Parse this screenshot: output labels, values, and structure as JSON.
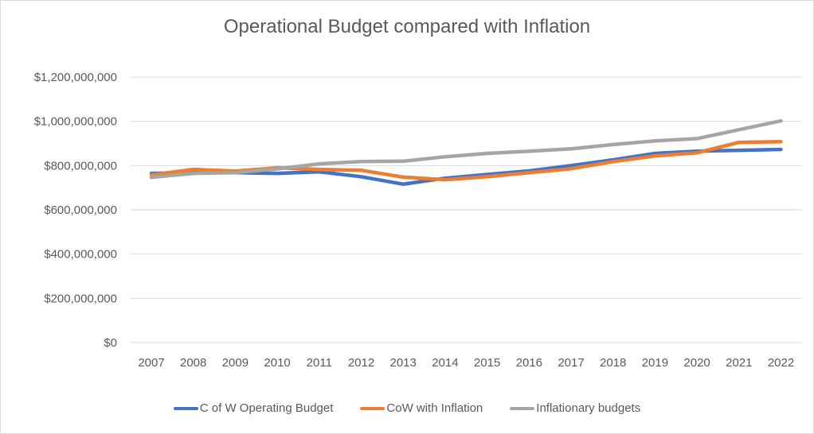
{
  "chart_data": {
    "type": "line",
    "title": "Operational Budget compared with Inflation",
    "xlabel": "",
    "ylabel": "",
    "x": [
      "2007",
      "2008",
      "2009",
      "2010",
      "2011",
      "2012",
      "2013",
      "2014",
      "2015",
      "2016",
      "2017",
      "2018",
      "2019",
      "2020",
      "2021",
      "2022"
    ],
    "ylim": [
      0,
      1200000000
    ],
    "yticks": [
      0,
      200000000,
      400000000,
      600000000,
      800000000,
      1000000000,
      1200000000
    ],
    "ytick_labels": [
      "$0",
      "$200,000,000",
      "$400,000,000",
      "$600,000,000",
      "$800,000,000",
      "$1,000,000,000",
      "$1,200,000,000"
    ],
    "grid": true,
    "legend_position": "bottom",
    "series": [
      {
        "name": "C of W Operating Budget",
        "color": "#4472c4",
        "values": [
          765000000,
          768000000,
          768000000,
          765000000,
          772000000,
          750000000,
          716000000,
          743000000,
          760000000,
          776000000,
          800000000,
          826000000,
          855000000,
          865000000,
          869000000,
          873000000
        ]
      },
      {
        "name": "CoW with Inflation",
        "color": "#ed7d31",
        "values": [
          758000000,
          783000000,
          775000000,
          790000000,
          783000000,
          779000000,
          748000000,
          736000000,
          750000000,
          768000000,
          786000000,
          818000000,
          844000000,
          858000000,
          905000000,
          908000000
        ]
      },
      {
        "name": "Inflationary budgets",
        "color": "#a5a5a5",
        "values": [
          747000000,
          765000000,
          768000000,
          785000000,
          808000000,
          818000000,
          820000000,
          840000000,
          855000000,
          865000000,
          876000000,
          895000000,
          912000000,
          922000000,
          962000000,
          1002000000
        ]
      }
    ]
  }
}
